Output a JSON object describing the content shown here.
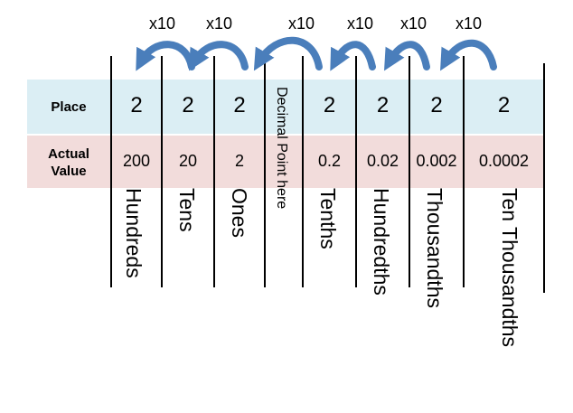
{
  "row_labels": {
    "place": "Place",
    "actual_line1": "Actual",
    "actual_line2": "Value"
  },
  "decimal_point_label": "Decimal Point here",
  "multiplier_label": "x10",
  "columns": [
    {
      "digit": "2",
      "value": "200",
      "name": "Hundreds"
    },
    {
      "digit": "2",
      "value": "20",
      "name": "Tens"
    },
    {
      "digit": "2",
      "value": "2",
      "name": "Ones"
    },
    {
      "digit": "2",
      "value": "0.2",
      "name": "Tenths"
    },
    {
      "digit": "2",
      "value": "0.02",
      "name": "Hundredths"
    },
    {
      "digit": "2",
      "value": "0.002",
      "name": "Thousandths"
    },
    {
      "digit": "2",
      "value": "0.0002",
      "name": "Ten Thousandths"
    }
  ],
  "colors": {
    "place_band": "#dbeef4",
    "actual_band": "#f2dcdb",
    "arrow": "#4a7ebb"
  }
}
